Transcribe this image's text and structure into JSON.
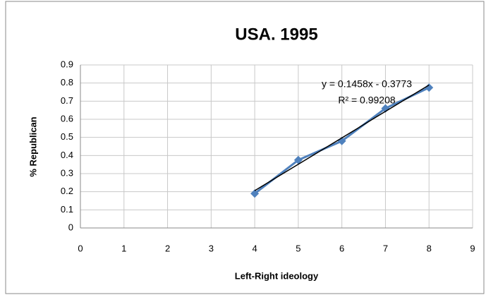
{
  "chart_data": {
    "type": "scatter",
    "title": "USA. 1995",
    "x_label": "Left-Right ideology",
    "y_label": "% Republican",
    "series": [
      {
        "name": "% Republican",
        "color": "#4f81bd",
        "x": [
          4,
          5,
          6,
          7,
          8
        ],
        "values": [
          0.19,
          0.375,
          0.48,
          0.66,
          0.775
        ]
      }
    ],
    "trendline": {
      "color": "#000000",
      "x": [
        4,
        8
      ],
      "values": [
        0.2059,
        0.7891
      ],
      "equation": "y = 0.1458x - 0.3773",
      "r_squared": "R² = 0.99208"
    },
    "xlim": [
      0,
      9
    ],
    "xticks": [
      0,
      1,
      2,
      3,
      4,
      5,
      6,
      7,
      8,
      9
    ],
    "ylim": [
      0,
      0.9
    ],
    "yticks": [
      0,
      0.1,
      0.2,
      0.3,
      0.4,
      0.5,
      0.6,
      0.7,
      0.8,
      0.9
    ],
    "grid": true
  }
}
